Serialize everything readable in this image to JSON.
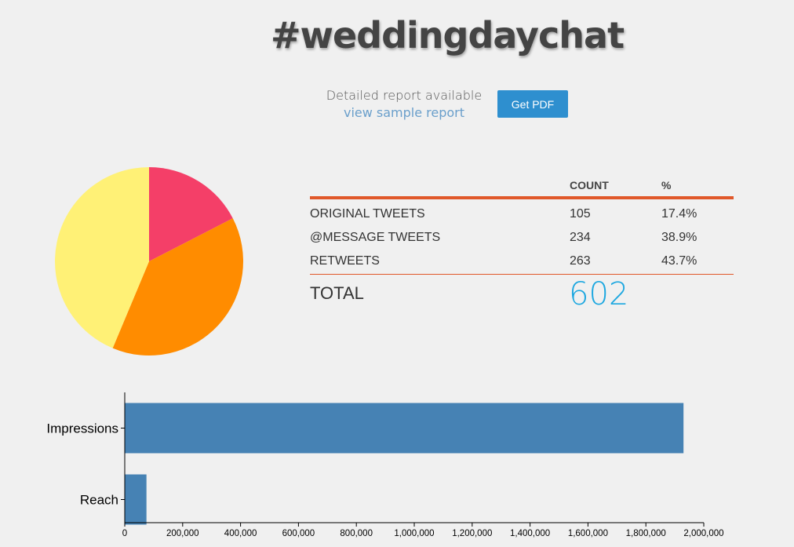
{
  "title": "#weddingdaychat",
  "report": {
    "line1": "Detailed report available",
    "link": "view sample report",
    "button": "Get PDF"
  },
  "colors": {
    "original": "#f43f68",
    "message": "#ff8c00",
    "retweets": "#fff176",
    "bar": "#4682b4",
    "accent": "#e0582a",
    "total": "#1ca7e0"
  },
  "stats": {
    "headers": {
      "count": "COUNT",
      "percent": "%"
    },
    "rows": [
      {
        "label": "ORIGINAL TWEETS",
        "count": "105",
        "percent": "17.4%"
      },
      {
        "label": "@MESSAGE TWEETS",
        "count": "234",
        "percent": "38.9%"
      },
      {
        "label": "RETWEETS",
        "count": "263",
        "percent": "43.7%"
      }
    ],
    "total_label": "TOTAL",
    "total_value": "602"
  },
  "chart_data": [
    {
      "type": "pie",
      "slices": [
        {
          "label": "ORIGINAL TWEETS",
          "value": 105,
          "color": "#f43f68"
        },
        {
          "label": "@MESSAGE TWEETS",
          "value": 234,
          "color": "#ff8c00"
        },
        {
          "label": "RETWEETS",
          "value": 263,
          "color": "#fff176"
        }
      ]
    },
    {
      "type": "bar",
      "orientation": "horizontal",
      "categories": [
        "Impressions",
        "Reach"
      ],
      "values": [
        1930000,
        75000
      ],
      "xlim": [
        0,
        2000000
      ],
      "xticks": [
        0,
        200000,
        400000,
        600000,
        800000,
        1000000,
        1200000,
        1400000,
        1600000,
        1800000,
        2000000
      ],
      "xtick_labels": [
        "0",
        "200,000",
        "400,000",
        "600,000",
        "800,000",
        "1,000,000",
        "1,200,000",
        "1,400,000",
        "1,600,000",
        "1,800,000",
        "2,000,000"
      ],
      "grid": false
    }
  ]
}
